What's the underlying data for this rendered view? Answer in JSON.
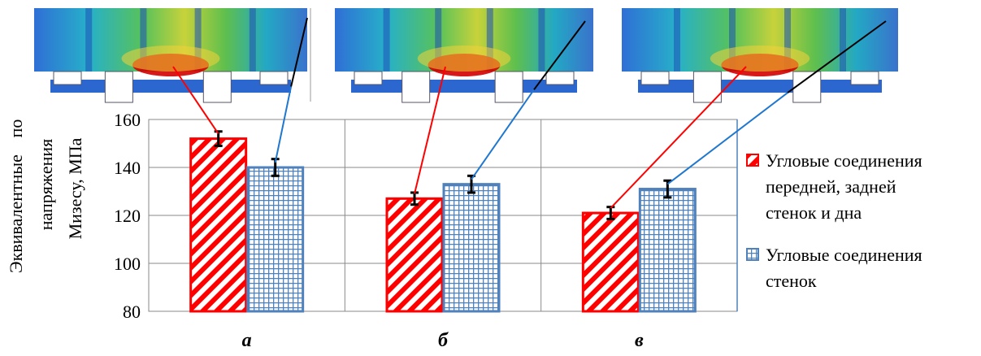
{
  "chart_data": {
    "type": "bar",
    "title": "",
    "xlabel": "",
    "ylabel": [
      "Эквивалентные",
      "по",
      "напряжения",
      "Мизесу, МПа"
    ],
    "categories": [
      "а",
      "б",
      "в"
    ],
    "ylim": [
      80,
      160
    ],
    "yticks": [
      80,
      100,
      120,
      140,
      160
    ],
    "grid": true,
    "legend_position": "right",
    "series": [
      {
        "name": "Угловые соединения передней, задней стенок и дна",
        "name_lines": [
          "Угловые соединения",
          "передней, задней",
          "стенок и дна"
        ],
        "color": "#ff0000",
        "pattern": "diagonal-hatch",
        "values": [
          152,
          127,
          121
        ],
        "errors": [
          3,
          2.5,
          2.5
        ]
      },
      {
        "name": "Угловые соединения стенок",
        "name_lines": [
          "Угловые  соединения",
          "стенок"
        ],
        "color": "#4f81bd",
        "pattern": "grid",
        "values": [
          140,
          133,
          131
        ],
        "errors": [
          3.5,
          3.5,
          3.5
        ]
      }
    ]
  },
  "insets": [
    {
      "label": "stress-map-a",
      "hot_color": "#cc0000"
    },
    {
      "label": "stress-map-b",
      "hot_color": "#cc0000"
    },
    {
      "label": "stress-map-c",
      "hot_color": "#cc0000"
    }
  ]
}
